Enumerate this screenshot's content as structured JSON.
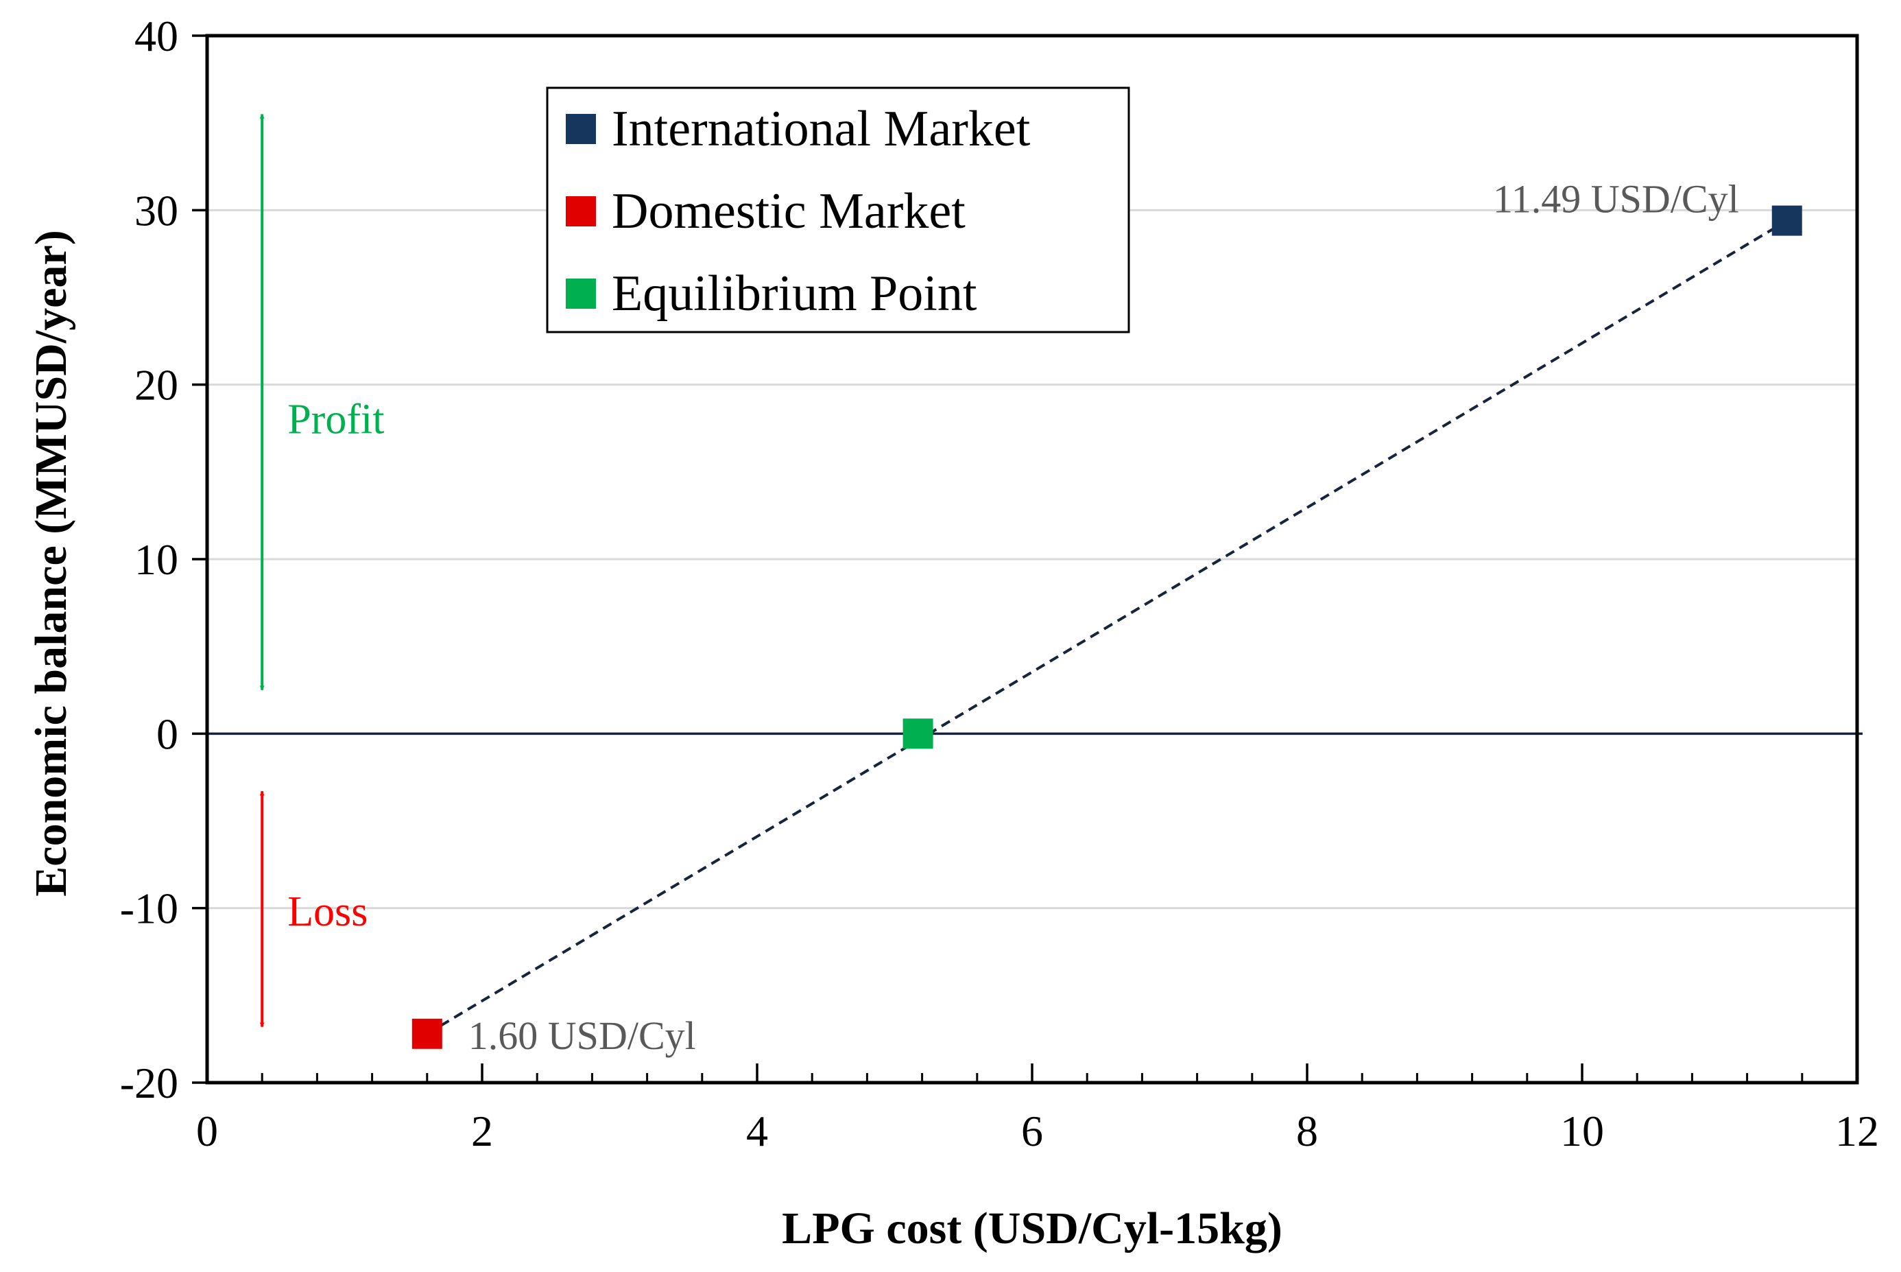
{
  "chart_data": {
    "type": "scatter",
    "title": "",
    "xlabel": "LPG cost (USD/Cyl-15kg)",
    "ylabel": "Economic balance (MMUSD/year)",
    "xlim": [
      0,
      12
    ],
    "ylim": [
      -20,
      40
    ],
    "x_ticks": [
      0,
      2,
      4,
      6,
      8,
      10,
      12
    ],
    "y_ticks": [
      -20,
      -10,
      0,
      10,
      20,
      30,
      40
    ],
    "x_tick_labels": [
      "0",
      "2",
      "4",
      "6",
      "8",
      "10",
      "12"
    ],
    "y_tick_labels": [
      "-20",
      "-10",
      "0",
      "10",
      "20",
      "30",
      "40"
    ],
    "x_minor_step": 0.4,
    "grid": "horizontal",
    "legend_position": "top-center",
    "series": [
      {
        "name": "International Market",
        "color": "#17365d",
        "points": [
          {
            "x": 11.49,
            "y": 29.4
          }
        ]
      },
      {
        "name": "Domestic Market",
        "color": "#e00000",
        "points": [
          {
            "x": 1.6,
            "y": -17.2
          }
        ]
      },
      {
        "name": "Equilibrium Point",
        "color": "#00b050",
        "points": [
          {
            "x": 5.17,
            "y": 0
          }
        ]
      }
    ],
    "trend_line": {
      "style": "dashed",
      "color": "#17243b",
      "from": {
        "x": 1.6,
        "y": -17.2
      },
      "to": {
        "x": 11.49,
        "y": 29.4
      }
    },
    "zero_line": {
      "y": 0,
      "color": "#17243b"
    },
    "point_labels": [
      {
        "text": "11.49 USD/Cyl",
        "series": "International Market",
        "anchor": "left"
      },
      {
        "text": "1.60 USD/Cyl",
        "series": "Domestic Market",
        "anchor": "right"
      }
    ],
    "annotations": [
      {
        "text": "Profit",
        "color": "#00b050",
        "arrow_x": 0.4,
        "arrow_y_range": [
          2.5,
          35.5
        ],
        "text_y": 18
      },
      {
        "text": "Loss",
        "color": "#ff0000",
        "arrow_x": 0.4,
        "arrow_y_range": [
          -16.8,
          -3.3
        ],
        "text_y": -10.2
      }
    ]
  }
}
